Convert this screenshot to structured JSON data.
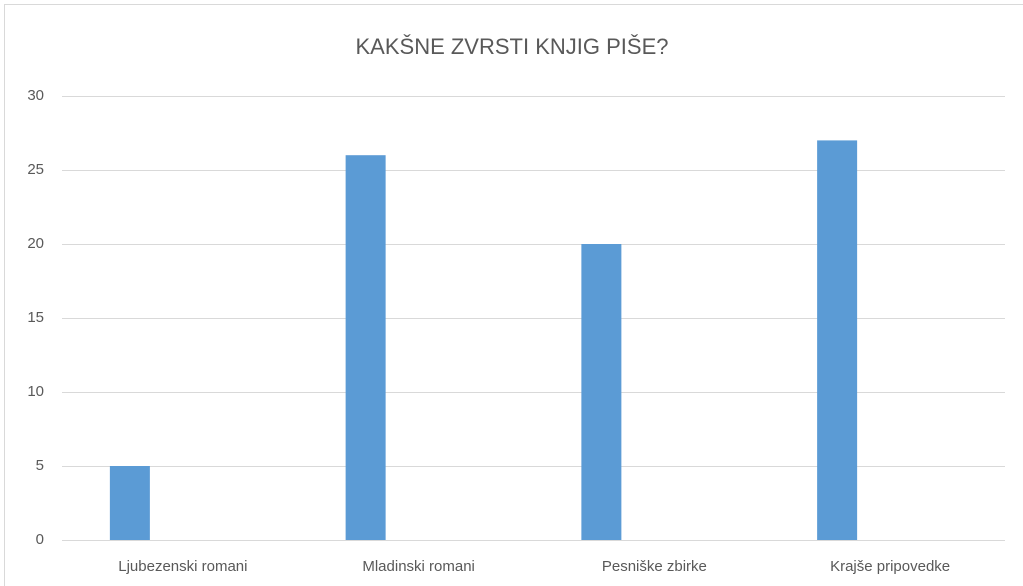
{
  "chart_data": {
    "type": "bar",
    "title": "KAKŠNE ZVRSTI KNJIG PIŠE?",
    "categories": [
      "Ljubezenski romani",
      "Mladinski romani",
      "Pesniške zbirke",
      "Krajše pripovedke"
    ],
    "values": [
      5,
      26,
      20,
      27
    ],
    "color": "#5b9bd5",
    "ylim": [
      0,
      30
    ],
    "yticks": [
      0,
      5,
      10,
      15,
      20,
      25,
      30
    ],
    "grid": true
  }
}
